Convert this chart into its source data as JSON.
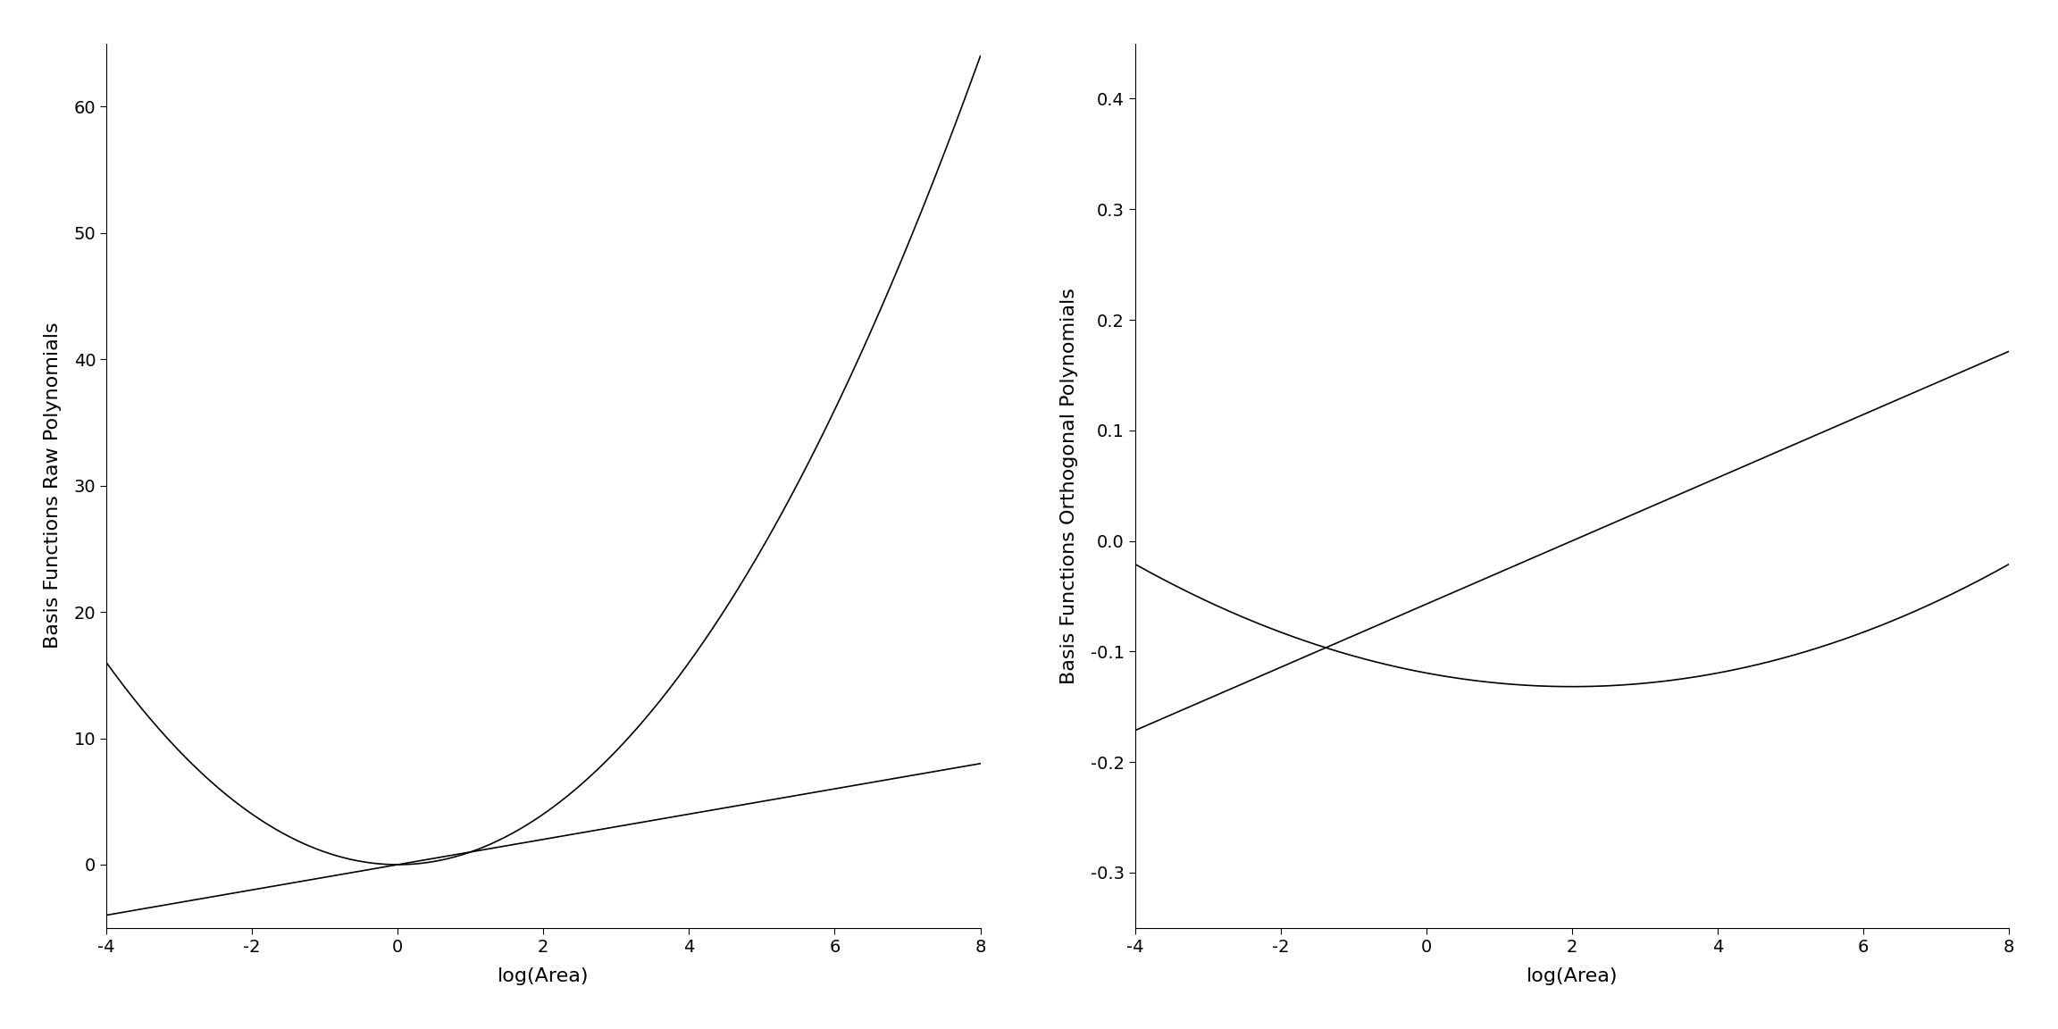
{
  "left_title": "Basis Functions Raw Polynomials",
  "right_title": "Basis Functions Orthogonal Polynomials",
  "xlabel": "log(Area)",
  "x_range": [
    -4,
    8
  ],
  "left_ylim": [
    -5,
    65
  ],
  "right_ylim": [
    -0.35,
    0.45
  ],
  "left_yticks": [
    0,
    10,
    20,
    30,
    40,
    50,
    60
  ],
  "right_yticks": [
    -0.3,
    -0.2,
    -0.1,
    0.0,
    0.1,
    0.2,
    0.3,
    0.4
  ],
  "xticks": [
    -4,
    -2,
    0,
    2,
    4,
    6,
    8
  ],
  "background_color": "#ffffff",
  "line_color": "#000000",
  "line_width": 1.2
}
